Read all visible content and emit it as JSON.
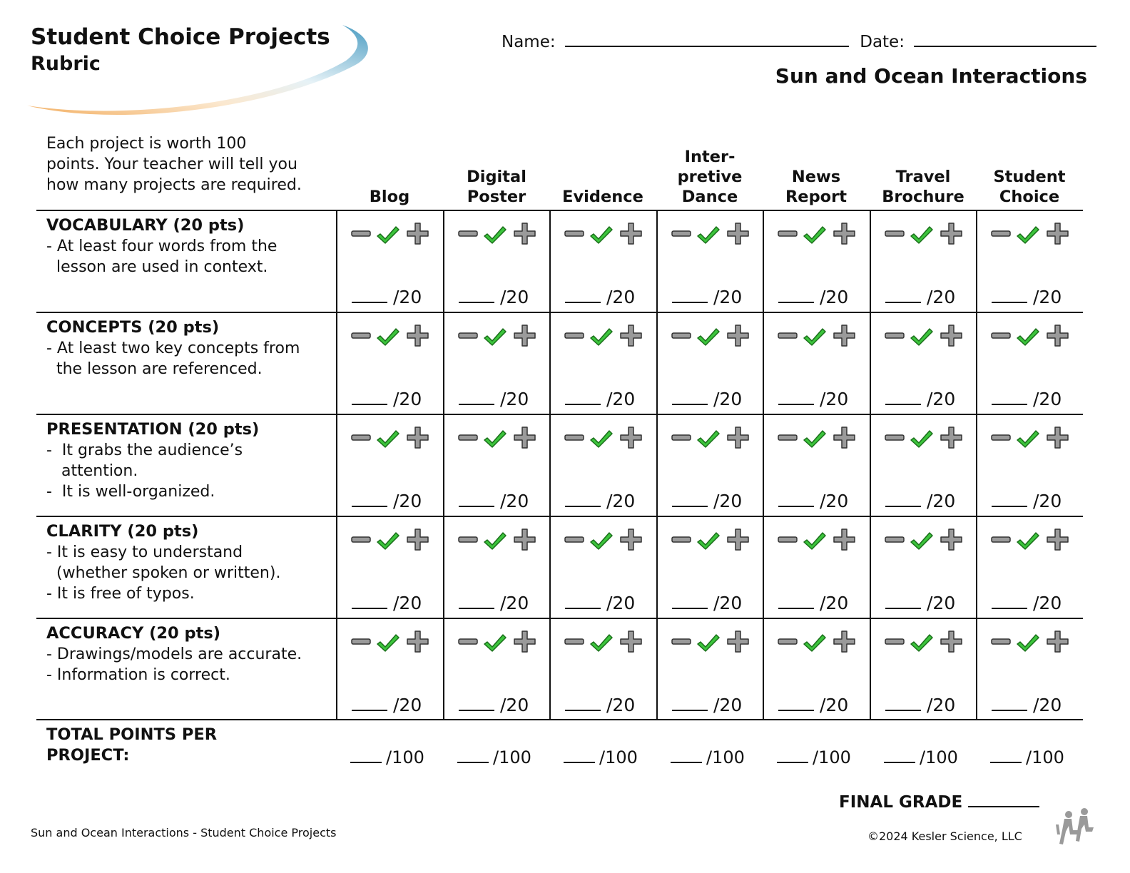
{
  "header": {
    "title": "Student Choice Projects",
    "subtitle": "Rubric",
    "name_label": "Name:",
    "date_label": "Date:",
    "topic": "Sun and Ocean Interactions"
  },
  "intro_lines": [
    "Each project is worth 100",
    "points. Your teacher will tell you",
    "how many projects are required."
  ],
  "columns": [
    [
      "Blog"
    ],
    [
      "Digital",
      "Poster"
    ],
    [
      "Evidence"
    ],
    [
      "Inter-",
      "pretive",
      "Dance"
    ],
    [
      "News",
      "Report"
    ],
    [
      "Travel",
      "Brochure"
    ],
    [
      "Student",
      "Choice"
    ]
  ],
  "criteria": [
    {
      "title": "VOCABULARY (20 pts)",
      "lines": [
        "- At least four words from the",
        "  lesson are used in context."
      ]
    },
    {
      "title": "CONCEPTS (20 pts)",
      "lines": [
        "- At least two key concepts from",
        "  the lesson are referenced."
      ]
    },
    {
      "title": "PRESENTATION (20 pts)",
      "lines": [
        "-  It grabs the audience’s",
        "   attention.",
        "-  It is well-organized."
      ]
    },
    {
      "title": "CLARITY (20 pts)",
      "lines": [
        "- It is easy to understand",
        "  (whether spoken or written).",
        "- It is free of typos."
      ]
    },
    {
      "title": "ACCURACY (20 pts)",
      "lines": [
        "- Drawings/models are accurate.",
        "- Information is correct."
      ]
    }
  ],
  "cell_score": "/20",
  "total": {
    "label_line1": "TOTAL POINTS PER",
    "label_line2": "PROJECT:",
    "score": "/100"
  },
  "final_grade_label": "FINAL GRADE",
  "footer": {
    "left": "Sun and Ocean Interactions - Student Choice Projects",
    "right": "©2024  Kesler Science, LLC"
  },
  "icons": {
    "minus": "minus-icon",
    "check": "check-icon",
    "plus": "plus-icon"
  },
  "colors": {
    "check": "#3cc43c",
    "icon_gray": "#9a9a9a",
    "swoosh_blue": "#5fa8c8",
    "swoosh_orange": "#f2b46a"
  }
}
